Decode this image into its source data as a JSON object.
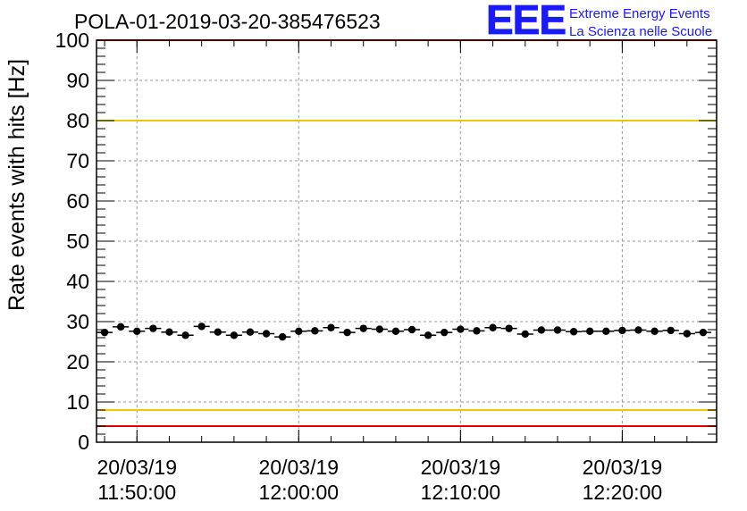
{
  "header": {
    "run_title": "POLA-01-2019-03-20-385476523",
    "logo_mark": "EEE",
    "logo_line1": "Extreme Energy Events",
    "logo_line2": "La Scienza nelle Scuole"
  },
  "colors": {
    "data_points": "#000000",
    "grid": "#9a9a9a",
    "yellow_lines": "#f0c800",
    "red_lines": "#e00000",
    "logo": "#1a1aff"
  },
  "chart_data": {
    "type": "scatter",
    "title": "POLA-01-2019-03-20-385476523",
    "ylabel": "Rate events with hits [Hz]",
    "xlabel": "",
    "ylim": [
      0,
      100
    ],
    "xlim": [
      "2019-03-20 11:47:30",
      "2019-03-20 12:25:50"
    ],
    "x_is_time": true,
    "grid": true,
    "y_ticks": [
      0,
      10,
      20,
      30,
      40,
      50,
      60,
      70,
      80,
      90,
      100
    ],
    "x_ticks": [
      {
        "time": "2019-03-20 11:50:00",
        "line1": "20/03/19",
        "line2": "11:50:00"
      },
      {
        "time": "2019-03-20 12:00:00",
        "line1": "20/03/19",
        "line2": "12:00:00"
      },
      {
        "time": "2019-03-20 12:10:00",
        "line1": "20/03/19",
        "line2": "12:10:00"
      },
      {
        "time": "2019-03-20 12:20:00",
        "line1": "20/03/19",
        "line2": "12:20:00"
      }
    ],
    "reference_lines": [
      {
        "y": 100,
        "color": "red"
      },
      {
        "y": 80,
        "color": "yellow"
      },
      {
        "y": 8,
        "color": "yellow"
      },
      {
        "y": 4,
        "color": "red"
      }
    ],
    "series": [
      {
        "x": [
          "2019-03-20 11:48:00",
          "2019-03-20 11:49:00",
          "2019-03-20 11:50:00",
          "2019-03-20 11:51:00",
          "2019-03-20 11:52:00",
          "2019-03-20 11:53:00",
          "2019-03-20 11:54:00",
          "2019-03-20 11:55:00",
          "2019-03-20 11:56:00",
          "2019-03-20 11:57:00",
          "2019-03-20 11:58:00",
          "2019-03-20 11:59:00",
          "2019-03-20 12:00:00",
          "2019-03-20 12:01:00",
          "2019-03-20 12:02:00",
          "2019-03-20 12:03:00",
          "2019-03-20 12:04:00",
          "2019-03-20 12:05:00",
          "2019-03-20 12:06:00",
          "2019-03-20 12:07:00",
          "2019-03-20 12:08:00",
          "2019-03-20 12:09:00",
          "2019-03-20 12:10:00",
          "2019-03-20 12:11:00",
          "2019-03-20 12:12:00",
          "2019-03-20 12:13:00",
          "2019-03-20 12:14:00",
          "2019-03-20 12:15:00",
          "2019-03-20 12:16:00",
          "2019-03-20 12:17:00",
          "2019-03-20 12:18:00",
          "2019-03-20 12:19:00",
          "2019-03-20 12:20:00",
          "2019-03-20 12:21:00",
          "2019-03-20 12:22:00",
          "2019-03-20 12:23:00",
          "2019-03-20 12:24:00",
          "2019-03-20 12:25:00"
        ],
        "values": [
          27.3,
          28.7,
          27.6,
          28.3,
          27.4,
          26.6,
          28.8,
          27.4,
          26.6,
          27.4,
          27.0,
          26.2,
          27.6,
          27.7,
          28.5,
          27.3,
          28.3,
          28.1,
          27.6,
          28.0,
          26.6,
          27.3,
          28.1,
          27.7,
          28.5,
          28.3,
          26.9,
          27.9,
          27.9,
          27.5,
          27.6,
          27.6,
          27.8,
          27.9,
          27.6,
          27.8,
          27.0,
          27.3
        ]
      }
    ]
  }
}
